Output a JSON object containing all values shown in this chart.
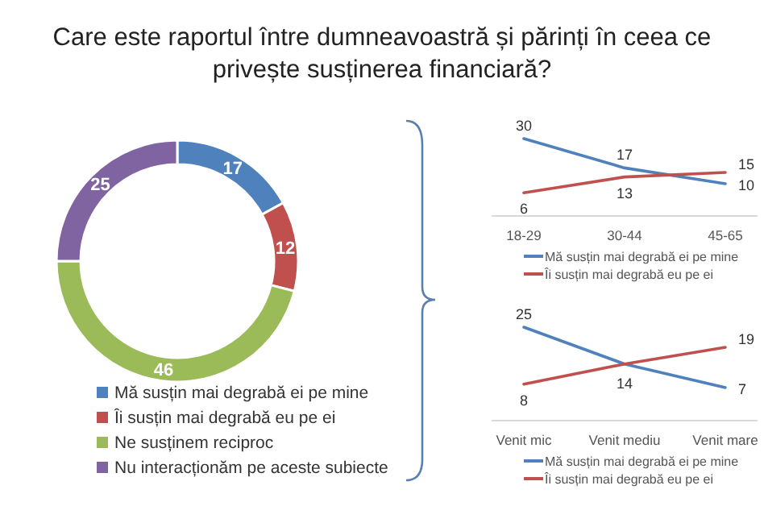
{
  "chart_data": [
    {
      "type": "donut",
      "title": "Care este raportul între dumneavoastră și părinți în ceea ce privește susținerea financiară?",
      "categories": [
        "Mă susțin mai degrabă ei pe mine",
        "Îi susțin mai degrabă eu pe ei",
        "Ne susținem reciproc",
        "Nu interacționăm pe aceste subiecte"
      ],
      "values": [
        17,
        12,
        46,
        25
      ],
      "colors": [
        "#4f81bd",
        "#c0504d",
        "#9bbb59",
        "#8064a2"
      ],
      "data_labels": true,
      "legend": "bottom"
    },
    {
      "type": "line",
      "categories": [
        "18-29",
        "30-44",
        "45-65"
      ],
      "series": [
        {
          "name": "Mă susțin mai degrabă ei pe mine",
          "color": "#4f81bd",
          "values": [
            30,
            17,
            10
          ]
        },
        {
          "name": "Îi susțin mai degrabă eu pe ei",
          "color": "#c0504d",
          "values": [
            6,
            13,
            15
          ]
        }
      ],
      "data_labels": true,
      "legend": "bottom",
      "marker": "none"
    },
    {
      "type": "line",
      "categories": [
        "Venit mic",
        "Venit mediu",
        "Venit mare"
      ],
      "series": [
        {
          "name": "Mă susțin mai degrabă ei pe mine",
          "color": "#4f81bd",
          "values": [
            25,
            14,
            7
          ],
          "value_labels": [
            "25",
            "14",
            "7"
          ]
        },
        {
          "name": "Îi susțin mai degrabă eu pe ei",
          "color": "#c0504d",
          "values": [
            8,
            14,
            19
          ],
          "value_labels": [
            "8",
            null,
            "19"
          ]
        }
      ],
      "legend": "bottom",
      "marker": "none"
    }
  ]
}
